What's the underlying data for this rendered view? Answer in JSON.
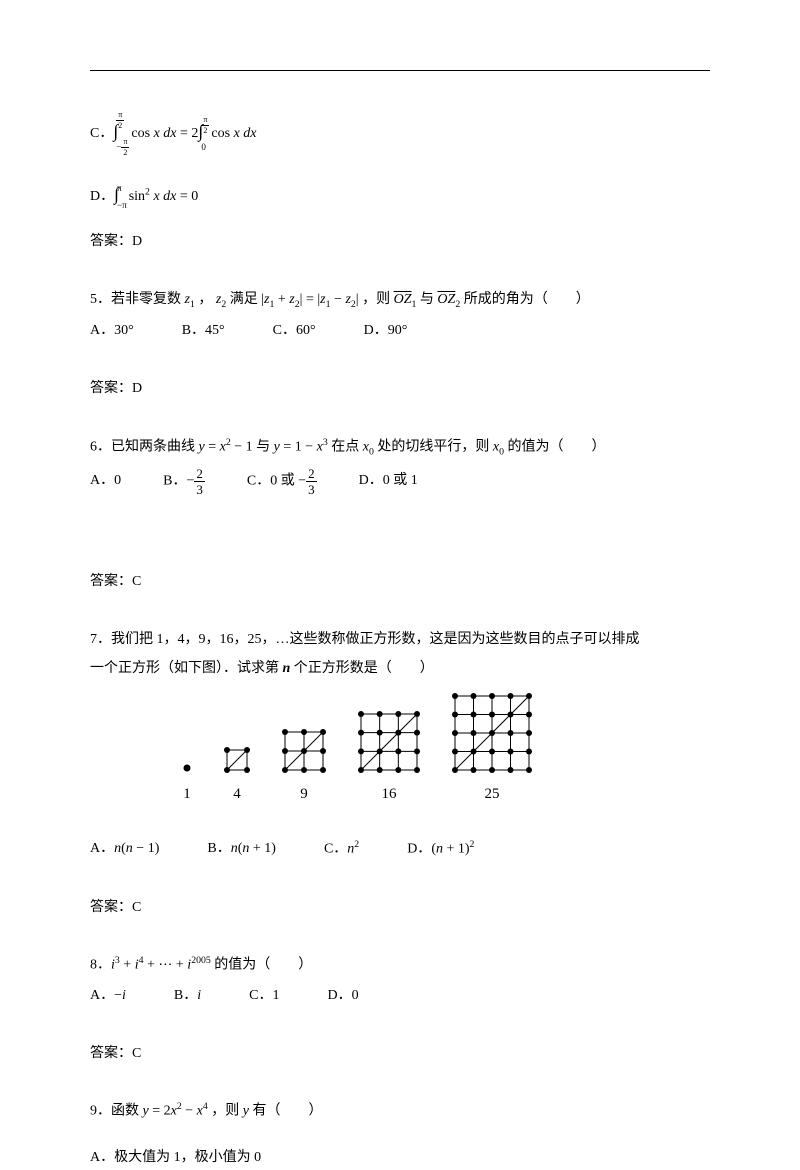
{
  "optC_expr": "∫₋π/2^π/2 cos x dx = 2∫₀^π/2 cos x dx",
  "optD_expr": "∫₋π^π sin² x dx = 0",
  "ans4_label": "答案：",
  "ans4_val": "D",
  "q5_text": "5．若非零复数 ",
  "q5_z1": "z₁",
  "q5_mid1": " ， ",
  "q5_z2": "z₂",
  "q5_mid2": " 满足 ",
  "q5_eq": "|z₁ + z₂| = |z₁ − z₂|",
  "q5_mid3": " ，则 ",
  "q5_oz1": "OZ₁",
  "q5_mid4": " 与 ",
  "q5_oz2": "OZ₂",
  "q5_tail": " 所成的角为（　　）",
  "q5_A": "A．30°",
  "q5_B": "B．45°",
  "q5_C": "C．60°",
  "q5_D": "D．90°",
  "ans5_label": "答案：",
  "ans5_val": "D",
  "q6_text1": "6．已知两条曲线 ",
  "q6_eq1": "y = x² − 1",
  "q6_text2": " 与 ",
  "q6_eq2": "y = 1 − x³",
  "q6_text3": " 在点 ",
  "q6_x0": "x₀",
  "q6_text4": " 处的切线平行，则 ",
  "q6_x0b": "x₀",
  "q6_text5": " 的值为（　　）",
  "q6_A": "A．0",
  "q6_B_pre": "B．",
  "q6_B_neg": "−",
  "q6_B_num": "2",
  "q6_B_den": "3",
  "q6_C_pre": "C．0 或 ",
  "q6_C_neg": "−",
  "q6_C_num": "2",
  "q6_C_den": "3",
  "q6_D": "D．0 或 1",
  "ans6_label": "答案：",
  "ans6_val": "C",
  "q7_line1": "7．我们把 1，4，9，16，25，…这些数称做正方形数，这是因为这些数目的点子可以排成",
  "q7_line2_a": "一个正方形（如下图）．试求第 ",
  "q7_n": "n",
  "q7_line2_b": " 个正方形数是（　　）",
  "fig_labels": [
    "1",
    "4",
    "9",
    "16",
    "25"
  ],
  "q7_A_pre": "A．",
  "q7_A": "n(n − 1)",
  "q7_B_pre": "B．",
  "q7_B": "n(n + 1)",
  "q7_C_pre": "C．",
  "q7_C": "n²",
  "q7_D_pre": "D．",
  "q7_D": "(n + 1)²",
  "ans7_label": "答案：",
  "ans7_val": "C",
  "q8_text1": "8．",
  "q8_expr": "i³ + i⁴ + ⋯ + i²⁰⁰⁵",
  "q8_text2": " 的值为（　　）",
  "q8_A": "A．−i",
  "q8_B": "B．i",
  "q8_C": "C．1",
  "q8_D": "D．0",
  "ans8_label": "答案：",
  "ans8_val": "C",
  "q9_text1": "9．函数 ",
  "q9_expr": "y = 2x² − x⁴",
  "q9_text2": " ，则 ",
  "q9_y": "y",
  "q9_text3": " 有（　　）",
  "q9_A": "A．极大值为 1，极小值为 0"
}
